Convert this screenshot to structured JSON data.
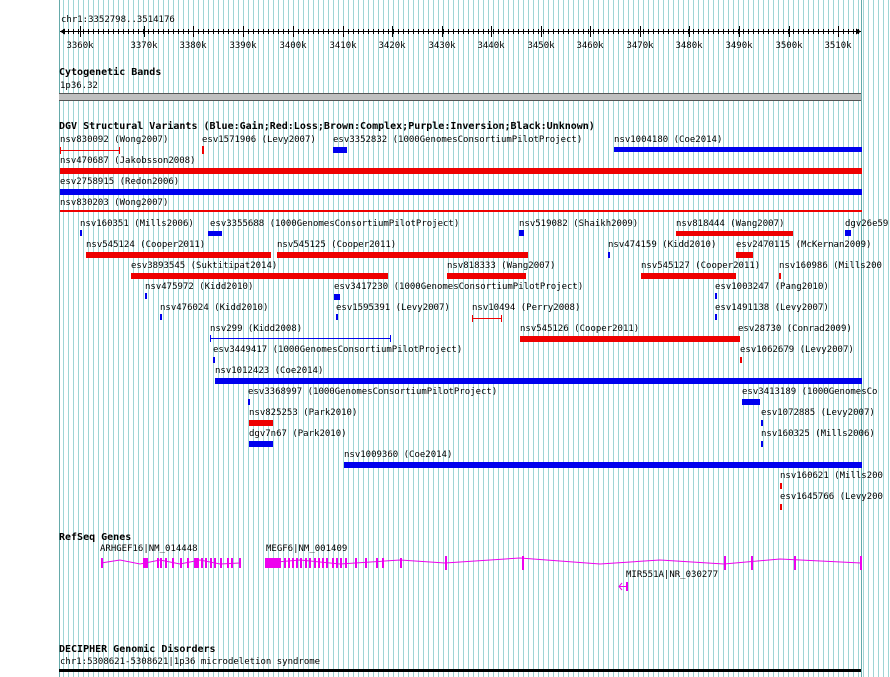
{
  "colors": {
    "gain": "#0000ee",
    "loss": "#ee0000",
    "gene": "#ee00ee",
    "grid": "#9fd5d5"
  },
  "header": {
    "coords": "chr1:3352798..3514176"
  },
  "ruler": {
    "start": 3352798,
    "end": 3514176,
    "ticks": [
      "3360k",
      "3370k",
      "3380k",
      "3390k",
      "3400k",
      "3410k",
      "3420k",
      "3430k",
      "3440k",
      "3450k",
      "3460k",
      "3470k",
      "3480k",
      "3490k",
      "3500k",
      "3510k"
    ]
  },
  "cytobands": {
    "title": "Cytogenetic Bands",
    "label": "1p36.32"
  },
  "dgv": {
    "title": "DGV Structural Variants (Blue:Gain;Red:Loss;Brown:Complex;Purple:Inversion;Black:Unknown)",
    "features": [
      {
        "label": "nsv830092 (Wong2007)"
      },
      {
        "label": "esv1571906 (Levy2007)"
      },
      {
        "label": "esv3352832 (1000GenomesConsortiumPilotProject)"
      },
      {
        "label": "nsv1004180 (Coe2014)"
      },
      {
        "label": "nsv470687 (Jakobsson2008)"
      },
      {
        "label": "esv2758915 (Redon2006)"
      },
      {
        "label": "nsv830203 (Wong2007)"
      },
      {
        "label": "nsv160351 (Mills2006)"
      },
      {
        "label": "esv3355688 (1000GenomesConsortiumPilotProject)"
      },
      {
        "label": "nsv519082 (Shaikh2009)"
      },
      {
        "label": "nsv818444 (Wang2007)"
      },
      {
        "label": "dgv26e59"
      },
      {
        "label": "nsv545124 (Cooper2011)"
      },
      {
        "label": "nsv545125 (Cooper2011)"
      },
      {
        "label": "nsv474159 (Kidd2010)"
      },
      {
        "label": "esv2470115 (McKernan2009)"
      },
      {
        "label": "esv3893545 (Suktitipat2014)"
      },
      {
        "label": "nsv818333 (Wang2007)"
      },
      {
        "label": "nsv545127 (Cooper2011)"
      },
      {
        "label": "nsv160986 (Mills200"
      },
      {
        "label": "nsv475972 (Kidd2010)"
      },
      {
        "label": "esv3417230 (1000GenomesConsortiumPilotProject)"
      },
      {
        "label": "esv1003247 (Pang2010)"
      },
      {
        "label": "nsv476024 (Kidd2010)"
      },
      {
        "label": "esv1595391 (Levy2007)"
      },
      {
        "label": "nsv10494 (Perry2008)"
      },
      {
        "label": "esv1491138 (Levy2007)"
      },
      {
        "label": "nsv299 (Kidd2008)"
      },
      {
        "label": "nsv545126 (Cooper2011)"
      },
      {
        "label": "esv28730 (Conrad2009)"
      },
      {
        "label": "esv3449417 (1000GenomesConsortiumPilotProject)"
      },
      {
        "label": "esv1062679 (Levy2007)"
      },
      {
        "label": "nsv1012423 (Coe2014)"
      },
      {
        "label": "esv3368997 (1000GenomesConsortiumPilotProject)"
      },
      {
        "label": "esv3413189 (1000GenomesCo"
      },
      {
        "label": "nsv825253 (Park2010)"
      },
      {
        "label": "esv1072885 (Levy2007)"
      },
      {
        "label": "dgv7n67 (Park2010)"
      },
      {
        "label": "nsv160325 (Mills2006)"
      },
      {
        "label": "nsv1009360 (Coe2014)"
      },
      {
        "label": "nsv160621 (Mills200"
      },
      {
        "label": "esv1645766 (Levy200"
      }
    ]
  },
  "refseq": {
    "title": "RefSeq Genes",
    "genes": [
      {
        "label": "ARHGEF16|NM_014448"
      },
      {
        "label": "MEGF6|NM_001409"
      },
      {
        "label": "MIR551A|NR_030277"
      }
    ]
  },
  "decipher": {
    "title": "DECIPHER Genomic Disorders",
    "label": "chr1:5308621-5308621|1p36 microdeletion syndrome"
  }
}
